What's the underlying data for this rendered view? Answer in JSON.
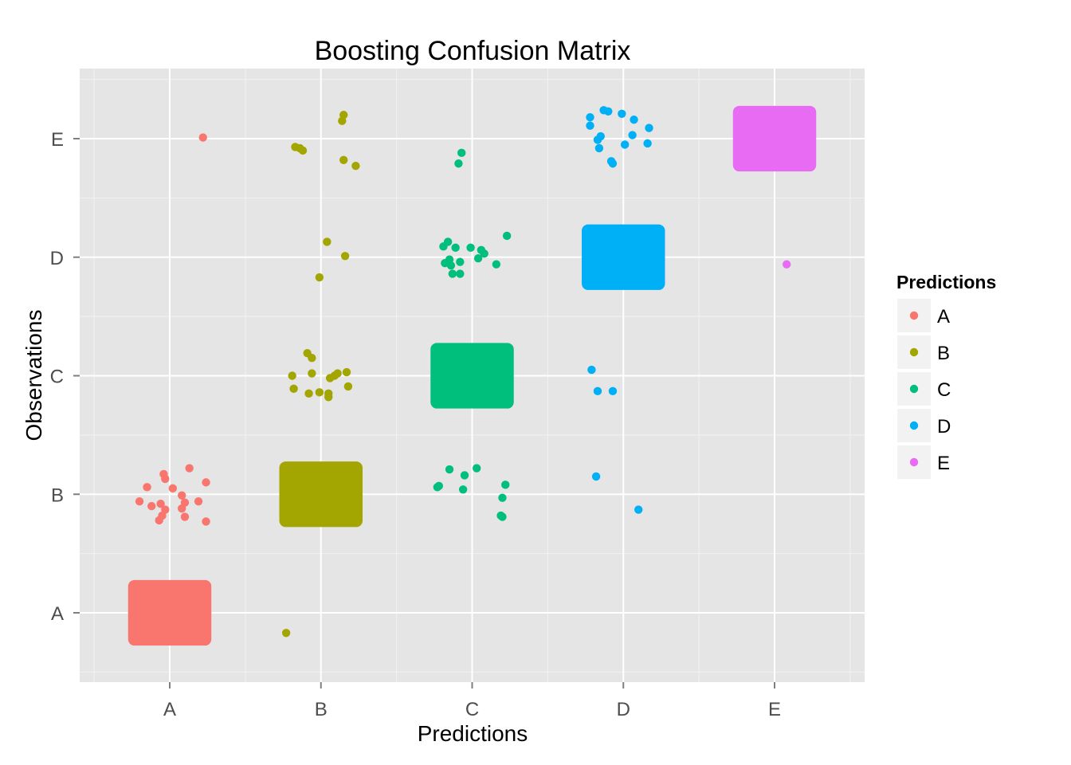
{
  "chart_data": {
    "type": "scatter",
    "subtype": "jittered confusion matrix",
    "title": "Boosting Confusion Matrix",
    "xlabel": "Predictions",
    "ylabel": "Observations",
    "categories": [
      "A",
      "B",
      "C",
      "D",
      "E"
    ],
    "grid": true,
    "legend": {
      "title": "Predictions",
      "position": "right",
      "items": [
        {
          "label": "A",
          "color": "#F8766D"
        },
        {
          "label": "B",
          "color": "#A3A500"
        },
        {
          "label": "C",
          "color": "#00BF7D"
        },
        {
          "label": "D",
          "color": "#00B0F6"
        },
        {
          "label": "E",
          "color": "#E76BF3"
        }
      ]
    },
    "dense_cells": [
      {
        "prediction": "A",
        "observation": "A"
      },
      {
        "prediction": "B",
        "observation": "B"
      },
      {
        "prediction": "C",
        "observation": "C"
      },
      {
        "prediction": "D",
        "observation": "D"
      },
      {
        "prediction": "E",
        "observation": "E"
      }
    ],
    "points": [
      {
        "prediction": "A",
        "observation": "E",
        "x": 1.22,
        "y": 5.01
      },
      {
        "prediction": "B",
        "observation": "E",
        "x": 1.83,
        "y": 4.93
      },
      {
        "prediction": "B",
        "observation": "E",
        "x": 1.86,
        "y": 4.92
      },
      {
        "prediction": "B",
        "observation": "E",
        "x": 1.88,
        "y": 4.9
      },
      {
        "prediction": "B",
        "observation": "E",
        "x": 2.15,
        "y": 5.2
      },
      {
        "prediction": "B",
        "observation": "E",
        "x": 2.14,
        "y": 5.15
      },
      {
        "prediction": "B",
        "observation": "E",
        "x": 2.15,
        "y": 4.82
      },
      {
        "prediction": "B",
        "observation": "E",
        "x": 2.23,
        "y": 4.77
      },
      {
        "prediction": "C",
        "observation": "E",
        "x": 2.93,
        "y": 4.88
      },
      {
        "prediction": "C",
        "observation": "E",
        "x": 2.91,
        "y": 4.79
      },
      {
        "prediction": "D",
        "observation": "E",
        "x": 3.78,
        "y": 5.18
      },
      {
        "prediction": "D",
        "observation": "E",
        "x": 3.87,
        "y": 5.24
      },
      {
        "prediction": "D",
        "observation": "E",
        "x": 3.9,
        "y": 5.23
      },
      {
        "prediction": "D",
        "observation": "E",
        "x": 3.99,
        "y": 5.21
      },
      {
        "prediction": "D",
        "observation": "E",
        "x": 4.07,
        "y": 5.16
      },
      {
        "prediction": "D",
        "observation": "E",
        "x": 4.17,
        "y": 5.09
      },
      {
        "prediction": "D",
        "observation": "E",
        "x": 3.78,
        "y": 5.11
      },
      {
        "prediction": "D",
        "observation": "E",
        "x": 3.85,
        "y": 5.02
      },
      {
        "prediction": "D",
        "observation": "E",
        "x": 3.83,
        "y": 4.99
      },
      {
        "prediction": "D",
        "observation": "E",
        "x": 4.06,
        "y": 5.03
      },
      {
        "prediction": "D",
        "observation": "E",
        "x": 4.01,
        "y": 4.95
      },
      {
        "prediction": "D",
        "observation": "E",
        "x": 4.16,
        "y": 4.96
      },
      {
        "prediction": "D",
        "observation": "E",
        "x": 3.84,
        "y": 4.92
      },
      {
        "prediction": "D",
        "observation": "E",
        "x": 3.92,
        "y": 4.81
      },
      {
        "prediction": "D",
        "observation": "E",
        "x": 3.93,
        "y": 4.79
      },
      {
        "prediction": "B",
        "observation": "D",
        "x": 2.04,
        "y": 4.13
      },
      {
        "prediction": "B",
        "observation": "D",
        "x": 2.16,
        "y": 4.01
      },
      {
        "prediction": "B",
        "observation": "D",
        "x": 1.99,
        "y": 3.83
      },
      {
        "prediction": "C",
        "observation": "D",
        "x": 2.81,
        "y": 4.09
      },
      {
        "prediction": "C",
        "observation": "D",
        "x": 2.84,
        "y": 4.13
      },
      {
        "prediction": "C",
        "observation": "D",
        "x": 2.89,
        "y": 4.08
      },
      {
        "prediction": "C",
        "observation": "D",
        "x": 2.99,
        "y": 4.08
      },
      {
        "prediction": "C",
        "observation": "D",
        "x": 3.06,
        "y": 4.06
      },
      {
        "prediction": "C",
        "observation": "D",
        "x": 3.08,
        "y": 4.03
      },
      {
        "prediction": "C",
        "observation": "D",
        "x": 3.04,
        "y": 3.99
      },
      {
        "prediction": "C",
        "observation": "D",
        "x": 3.23,
        "y": 4.18
      },
      {
        "prediction": "C",
        "observation": "D",
        "x": 2.85,
        "y": 3.98
      },
      {
        "prediction": "C",
        "observation": "D",
        "x": 2.82,
        "y": 3.95
      },
      {
        "prediction": "C",
        "observation": "D",
        "x": 2.92,
        "y": 3.96
      },
      {
        "prediction": "C",
        "observation": "D",
        "x": 2.86,
        "y": 3.93
      },
      {
        "prediction": "C",
        "observation": "D",
        "x": 3.16,
        "y": 3.94
      },
      {
        "prediction": "C",
        "observation": "D",
        "x": 2.87,
        "y": 3.86
      },
      {
        "prediction": "C",
        "observation": "D",
        "x": 2.92,
        "y": 3.86
      },
      {
        "prediction": "E",
        "observation": "D",
        "x": 5.08,
        "y": 3.94
      },
      {
        "prediction": "B",
        "observation": "C",
        "x": 1.91,
        "y": 3.19
      },
      {
        "prediction": "B",
        "observation": "C",
        "x": 1.94,
        "y": 3.15
      },
      {
        "prediction": "B",
        "observation": "C",
        "x": 1.81,
        "y": 3.0
      },
      {
        "prediction": "B",
        "observation": "C",
        "x": 1.94,
        "y": 3.02
      },
      {
        "prediction": "B",
        "observation": "C",
        "x": 2.09,
        "y": 3.0
      },
      {
        "prediction": "B",
        "observation": "C",
        "x": 2.11,
        "y": 3.02
      },
      {
        "prediction": "B",
        "observation": "C",
        "x": 2.17,
        "y": 3.03
      },
      {
        "prediction": "B",
        "observation": "C",
        "x": 2.06,
        "y": 2.98
      },
      {
        "prediction": "B",
        "observation": "C",
        "x": 1.82,
        "y": 2.89
      },
      {
        "prediction": "B",
        "observation": "C",
        "x": 1.92,
        "y": 2.85
      },
      {
        "prediction": "B",
        "observation": "C",
        "x": 1.99,
        "y": 2.86
      },
      {
        "prediction": "B",
        "observation": "C",
        "x": 2.05,
        "y": 2.85
      },
      {
        "prediction": "B",
        "observation": "C",
        "x": 2.18,
        "y": 2.91
      },
      {
        "prediction": "B",
        "observation": "C",
        "x": 2.05,
        "y": 2.82
      },
      {
        "prediction": "D",
        "observation": "C",
        "x": 3.79,
        "y": 3.05
      },
      {
        "prediction": "D",
        "observation": "C",
        "x": 3.83,
        "y": 2.87
      },
      {
        "prediction": "D",
        "observation": "C",
        "x": 3.93,
        "y": 2.87
      },
      {
        "prediction": "A",
        "observation": "B",
        "x": 1.13,
        "y": 2.22
      },
      {
        "prediction": "A",
        "observation": "B",
        "x": 0.96,
        "y": 2.17
      },
      {
        "prediction": "A",
        "observation": "B",
        "x": 0.97,
        "y": 2.13
      },
      {
        "prediction": "A",
        "observation": "B",
        "x": 1.24,
        "y": 2.1
      },
      {
        "prediction": "A",
        "observation": "B",
        "x": 0.85,
        "y": 2.06
      },
      {
        "prediction": "A",
        "observation": "B",
        "x": 1.02,
        "y": 2.05
      },
      {
        "prediction": "A",
        "observation": "B",
        "x": 1.08,
        "y": 1.99
      },
      {
        "prediction": "A",
        "observation": "B",
        "x": 0.8,
        "y": 1.94
      },
      {
        "prediction": "A",
        "observation": "B",
        "x": 1.1,
        "y": 1.93
      },
      {
        "prediction": "A",
        "observation": "B",
        "x": 1.19,
        "y": 1.94
      },
      {
        "prediction": "A",
        "observation": "B",
        "x": 0.88,
        "y": 1.9
      },
      {
        "prediction": "A",
        "observation": "B",
        "x": 0.94,
        "y": 1.92
      },
      {
        "prediction": "A",
        "observation": "B",
        "x": 0.97,
        "y": 1.87
      },
      {
        "prediction": "A",
        "observation": "B",
        "x": 1.08,
        "y": 1.88
      },
      {
        "prediction": "A",
        "observation": "B",
        "x": 0.95,
        "y": 1.82
      },
      {
        "prediction": "A",
        "observation": "B",
        "x": 1.1,
        "y": 1.81
      },
      {
        "prediction": "A",
        "observation": "B",
        "x": 0.93,
        "y": 1.78
      },
      {
        "prediction": "A",
        "observation": "B",
        "x": 1.24,
        "y": 1.77
      },
      {
        "prediction": "C",
        "observation": "B",
        "x": 2.85,
        "y": 2.21
      },
      {
        "prediction": "C",
        "observation": "B",
        "x": 3.03,
        "y": 2.22
      },
      {
        "prediction": "C",
        "observation": "B",
        "x": 2.95,
        "y": 2.16
      },
      {
        "prediction": "C",
        "observation": "B",
        "x": 2.78,
        "y": 2.07
      },
      {
        "prediction": "C",
        "observation": "B",
        "x": 2.77,
        "y": 2.06
      },
      {
        "prediction": "C",
        "observation": "B",
        "x": 3.22,
        "y": 2.08
      },
      {
        "prediction": "C",
        "observation": "B",
        "x": 2.94,
        "y": 2.04
      },
      {
        "prediction": "C",
        "observation": "B",
        "x": 3.2,
        "y": 1.97
      },
      {
        "prediction": "C",
        "observation": "B",
        "x": 3.19,
        "y": 1.82
      },
      {
        "prediction": "C",
        "observation": "B",
        "x": 3.2,
        "y": 1.81
      },
      {
        "prediction": "D",
        "observation": "B",
        "x": 3.82,
        "y": 2.15
      },
      {
        "prediction": "D",
        "observation": "B",
        "x": 4.1,
        "y": 1.87
      },
      {
        "prediction": "B",
        "observation": "A",
        "x": 1.77,
        "y": 0.83
      }
    ]
  }
}
